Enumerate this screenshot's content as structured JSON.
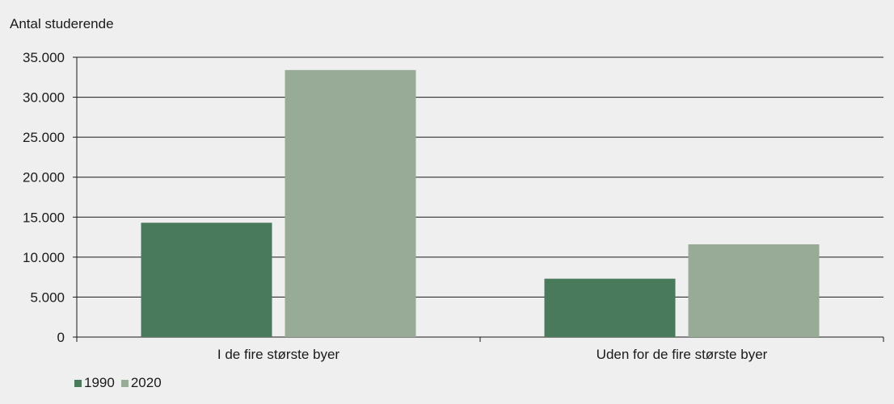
{
  "chart_data": {
    "type": "bar",
    "ylabel": "Antal studerende",
    "categories": [
      "I de fire største byer",
      "Uden for de fire største byer"
    ],
    "series": [
      {
        "name": "1990",
        "color": "#4a7a5c",
        "values": [
          14300,
          7300
        ]
      },
      {
        "name": "2020",
        "color": "#97ab96",
        "values": [
          33400,
          11600
        ]
      }
    ],
    "ylim": [
      0,
      35000
    ],
    "yticks": [
      0,
      5000,
      10000,
      15000,
      20000,
      25000,
      30000,
      35000
    ],
    "ytick_labels": [
      "0",
      "5.000",
      "10.000",
      "15.000",
      "20.000",
      "25.000",
      "30.000",
      "35.000"
    ],
    "grid": true,
    "legend_position": "bottom-left"
  }
}
